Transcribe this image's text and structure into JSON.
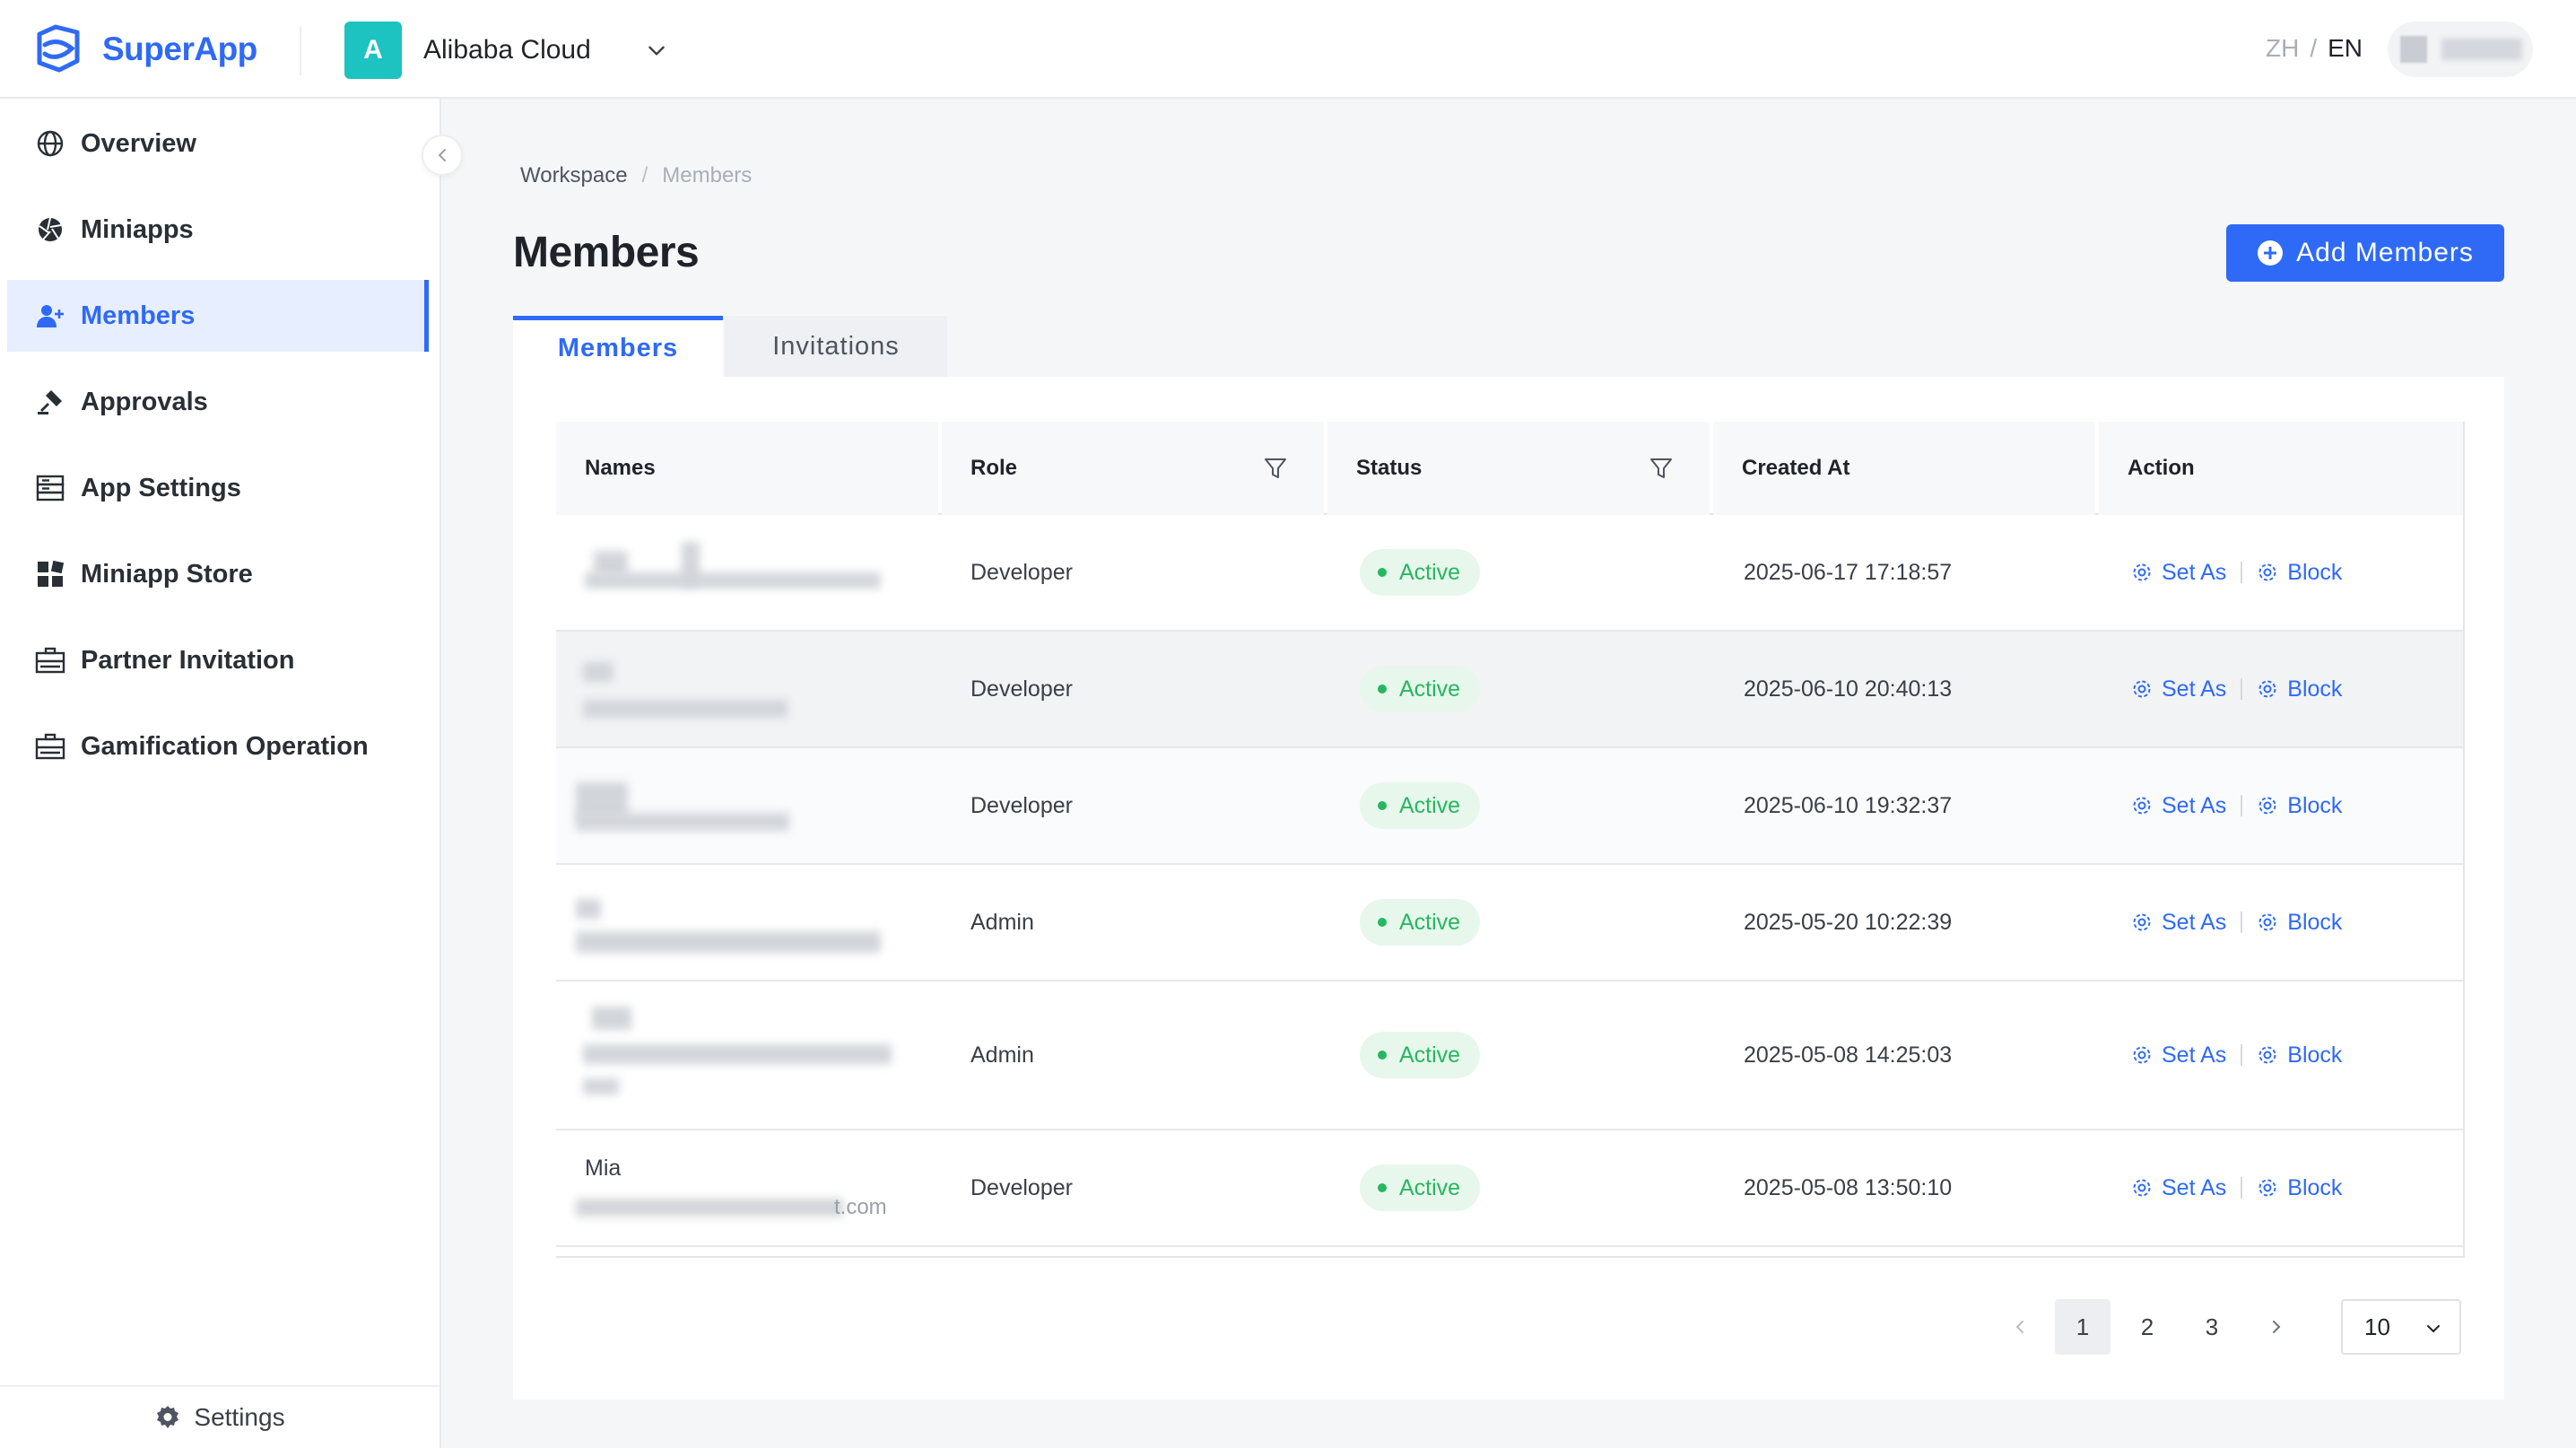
{
  "app": {
    "name": "SuperApp"
  },
  "org": {
    "avatar_letter": "A",
    "name": "Alibaba Cloud"
  },
  "lang": {
    "zh": "ZH",
    "separator": "/",
    "en": "EN"
  },
  "sidebar": {
    "items": [
      {
        "label": "Overview",
        "icon": "globe-icon"
      },
      {
        "label": "Miniapps",
        "icon": "aperture-icon"
      },
      {
        "label": "Members",
        "icon": "user-add-icon",
        "active": true
      },
      {
        "label": "Approvals",
        "icon": "stamp-icon"
      },
      {
        "label": "App Settings",
        "icon": "server-icon"
      },
      {
        "label": "Miniapp Store",
        "icon": "app-grid-icon"
      },
      {
        "label": "Partner Invitation",
        "icon": "briefcase-icon"
      },
      {
        "label": "Gamification Operation",
        "icon": "briefcase-icon"
      }
    ],
    "footer_label": "Settings"
  },
  "breadcrumb": {
    "root": "Workspace",
    "separator": "/",
    "current": "Members"
  },
  "page": {
    "title": "Members",
    "add_button": "Add Members"
  },
  "tabs": [
    {
      "label": "Members",
      "active": true
    },
    {
      "label": "Invitations"
    }
  ],
  "table": {
    "columns": [
      "Names",
      "Role",
      "Status",
      "Created At",
      "Action"
    ],
    "rows": [
      {
        "name": "",
        "email_tail": "",
        "role": "Developer",
        "status": "Active",
        "created_at": "2025-06-17 17:18:57",
        "action_set": "Set As",
        "action_block": "Block"
      },
      {
        "name": "",
        "email_tail": "",
        "role": "Developer",
        "status": "Active",
        "created_at": "2025-06-10 20:40:13",
        "action_set": "Set As",
        "action_block": "Block"
      },
      {
        "name": "",
        "email_tail": "",
        "role": "Developer",
        "status": "Active",
        "created_at": "2025-06-10 19:32:37",
        "action_set": "Set As",
        "action_block": "Block"
      },
      {
        "name": "",
        "email_tail": "",
        "role": "Admin",
        "status": "Active",
        "created_at": "2025-05-20 10:22:39",
        "action_set": "Set As",
        "action_block": "Block"
      },
      {
        "name": "",
        "email_tail": "",
        "role": "Admin",
        "status": "Active",
        "created_at": "2025-05-08 14:25:03",
        "action_set": "Set As",
        "action_block": "Block"
      },
      {
        "name": "Mia",
        "email_tail": "t.com",
        "role": "Developer",
        "status": "Active",
        "created_at": "2025-05-08 13:50:10",
        "action_set": "Set As",
        "action_block": "Block"
      }
    ]
  },
  "pagination": {
    "pages": [
      "1",
      "2",
      "3"
    ],
    "current": "1",
    "page_size": "10"
  },
  "colors": {
    "primary": "#2f6af6",
    "active_green": "#27b760",
    "org_avatar": "#1cc3c0"
  }
}
